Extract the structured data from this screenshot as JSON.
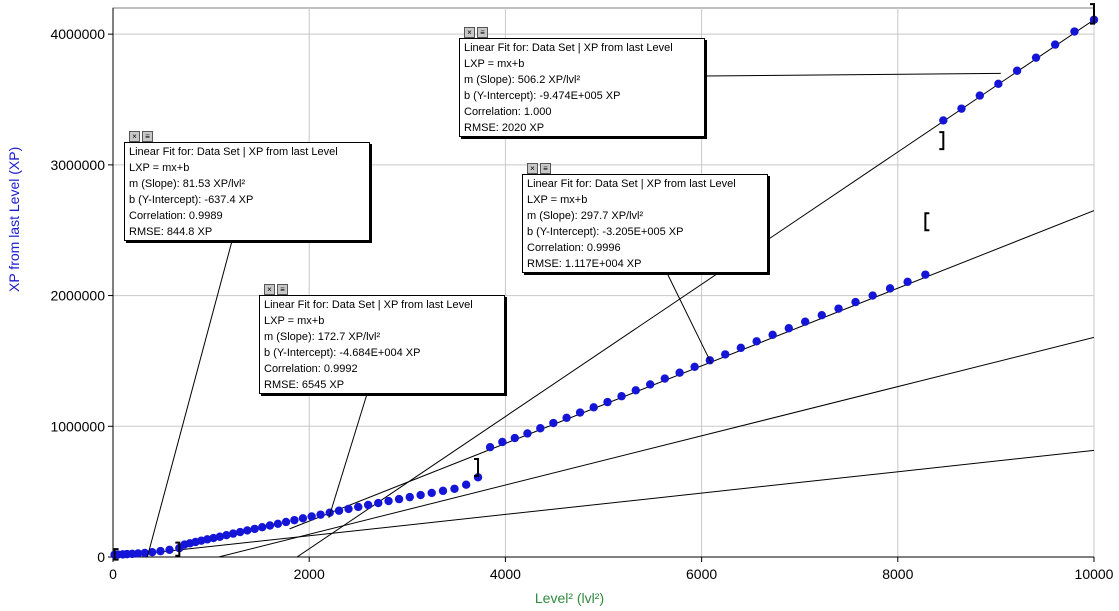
{
  "chart_data": {
    "type": "scatter",
    "xlabel": "Level² (lvl²)",
    "ylabel": "XP from last Level (XP)",
    "xlim": [
      0,
      10000
    ],
    "ylim": [
      0,
      4200000
    ],
    "x_ticks": [
      "0",
      "2000",
      "4000",
      "6000",
      "8000",
      "10000"
    ],
    "y_ticks": [
      "0",
      "1000000",
      "2000000",
      "3000000",
      "4000000"
    ],
    "x_tick_values": [
      0,
      2000,
      4000,
      6000,
      8000,
      10000
    ],
    "y_tick_values": [
      0,
      1000000,
      2000000,
      3000000,
      4000000
    ],
    "grid": true,
    "point_color": "#1515d8",
    "series": [
      {
        "x": [
          16,
          49,
          100,
          144,
          196,
          256,
          324,
          400,
          484,
          576,
          676,
          729,
          784,
          841,
          900,
          961,
          1024,
          1089,
          1156,
          1225,
          1296,
          1369,
          1444,
          1521,
          1600,
          1681,
          1764,
          1849,
          1936,
          2025,
          2116,
          2209,
          2304,
          2401,
          2500,
          2601,
          2704,
          2809,
          2916,
          3025,
          3136,
          3249,
          3364,
          3481,
          3600,
          3721,
          3844,
          3969,
          4096,
          4225,
          4356,
          4489,
          4624,
          4761,
          4900,
          5041,
          5184,
          5329,
          5476,
          5625,
          5776,
          5929,
          6084,
          6241,
          6400,
          6561,
          6724,
          6889,
          7056,
          7225,
          7396,
          7569,
          7744,
          7921,
          8100,
          8281,
          8464,
          8649,
          8836,
          9025,
          9216,
          9409,
          9604,
          9801,
          10000
        ],
        "y": [
          18000,
          19000,
          20000,
          22000,
          24000,
          27000,
          31000,
          37000,
          45000,
          55000,
          68000,
          95000,
          105000,
          115000,
          125000,
          135000,
          145000,
          155000,
          167000,
          179000,
          191000,
          203000,
          215000,
          228000,
          241000,
          254000,
          268000,
          282000,
          296000,
          310000,
          324000,
          339000,
          354000,
          368000,
          383000,
          398000,
          413000,
          428000,
          443000,
          458000,
          474000,
          490000,
          506000,
          522000,
          553000,
          610000,
          840000,
          880000,
          910000,
          945000,
          985000,
          1025000,
          1065000,
          1105000,
          1145000,
          1185000,
          1230000,
          1275000,
          1320000,
          1365000,
          1410000,
          1455000,
          1505000,
          1550000,
          1600000,
          1650000,
          1700000,
          1750000,
          1800000,
          1850000,
          1900000,
          1950000,
          2000000,
          2055000,
          2105000,
          2160000,
          3340000,
          3430000,
          3530000,
          3620000,
          3720000,
          3820000,
          3920000,
          4020000,
          4110000
        ]
      }
    ],
    "fit_lines": [
      {
        "x": [
          300,
          10000
        ],
        "y": [
          23800,
          815300
        ]
      },
      {
        "x": [
          1050,
          10000
        ],
        "y": [
          -5000,
          1680000
        ]
      },
      {
        "x": [
          1800,
          10000
        ],
        "y": [
          215000,
          2650000
        ]
      },
      {
        "x": [
          1870,
          10000
        ],
        "y": [
          -3000,
          4110000
        ]
      }
    ],
    "range_brackets": [
      {
        "x": 16,
        "y_top": 60000,
        "y_bottom": -20000,
        "side": "left"
      },
      {
        "x": 676,
        "y_top": 110000,
        "y_bottom": 10000,
        "side": "right"
      },
      {
        "x": 3721,
        "y_top": 750000,
        "y_bottom": 620000,
        "side": "right"
      },
      {
        "x": 8464,
        "y_top": 3250000,
        "y_bottom": 3120000,
        "side": "right"
      },
      {
        "x": 8281,
        "y_top": 2630000,
        "y_bottom": 2500000,
        "side": "left"
      },
      {
        "x": 10000,
        "y_top": 4230000,
        "y_bottom": 4080000,
        "side": "right"
      }
    ],
    "annotations": [
      {
        "title": "Linear Fit for: Data Set | XP from last Level",
        "equation": "LXP = mx+b",
        "slope": "m (Slope): 81.53 XP/lvl²",
        "intercept": "b (Y-Intercept): -637.4 XP",
        "correlation": "Correlation: 0.9989",
        "rmse": "RMSE: 844.8 XP",
        "pointer_to": [
          350,
          0
        ]
      },
      {
        "title": "Linear Fit for: Data Set | XP from last Level",
        "equation": "LXP = mx+b",
        "slope": "m (Slope): 172.7 XP/lvl²",
        "intercept": "b (Y-Intercept): -4.684E+004 XP",
        "correlation": "Correlation: 0.9992",
        "rmse": "RMSE: 6545 XP",
        "pointer_to": [
          2200,
          300000
        ]
      },
      {
        "title": "Linear Fit for: Data Set | XP from last Level",
        "equation": "LXP = mx+b",
        "slope": "m (Slope): 297.7 XP/lvl²",
        "intercept": "b (Y-Intercept): -3.205E+005 XP",
        "correlation": "Correlation: 0.9996",
        "rmse": "RMSE: 1.117E+004 XP",
        "pointer_to": [
          6100,
          1480000
        ]
      },
      {
        "title": "Linear Fit for: Data Set | XP from last Level",
        "equation": "LXP = mx+b",
        "slope": "m (Slope): 506.2 XP/lvl²",
        "intercept": "b (Y-Intercept): -9.474E+005 XP",
        "correlation": "Correlation: 1.000",
        "rmse": "RMSE: 2020 XP",
        "pointer_to": [
          9050,
          3700000
        ]
      }
    ]
  }
}
